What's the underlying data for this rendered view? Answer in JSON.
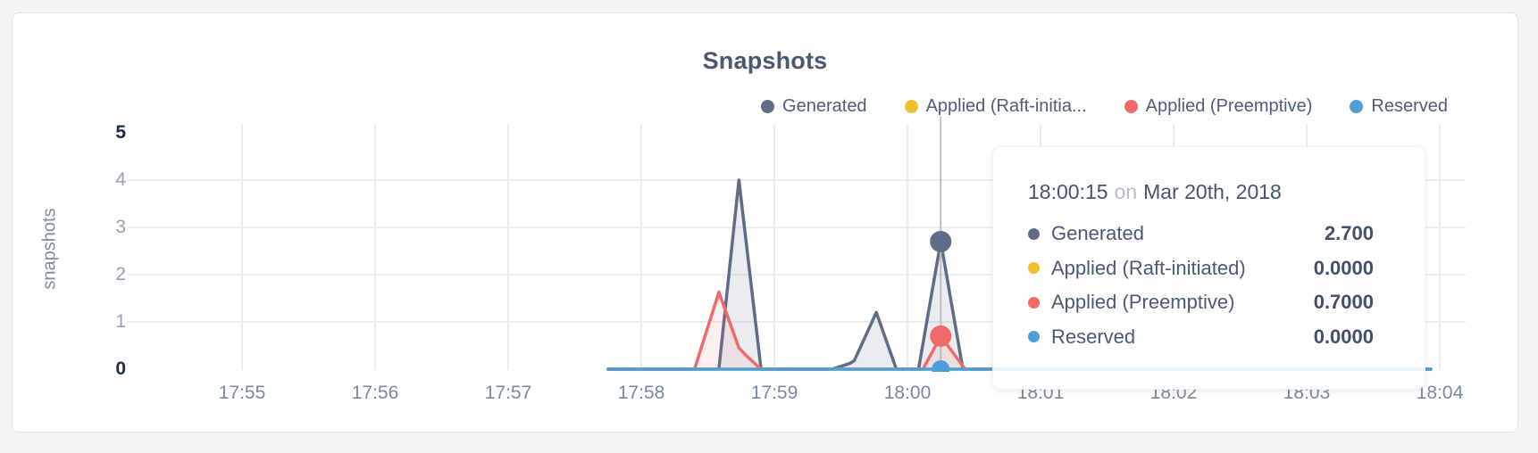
{
  "chart": {
    "title": "Snapshots",
    "y_axis_label": "snapshots"
  },
  "legend": [
    {
      "label": "Generated",
      "color": "#5F6C87"
    },
    {
      "label": "Applied (Raft-initia...",
      "color": "#F2BE2C"
    },
    {
      "label": "Applied (Preemptive)",
      "color": "#F16969"
    },
    {
      "label": "Reserved",
      "color": "#4C9FD8"
    }
  ],
  "tooltip": {
    "time": "18:00:15",
    "conjunction": "on",
    "date": "Mar 20th, 2018",
    "rows": [
      {
        "label": "Generated",
        "value": "2.700",
        "color": "#5F6C87"
      },
      {
        "label": "Applied (Raft-initiated)",
        "value": "0.0000",
        "color": "#F2BE2C"
      },
      {
        "label": "Applied (Preemptive)",
        "value": "0.7000",
        "color": "#F16969"
      },
      {
        "label": "Reserved",
        "value": "0.0000",
        "color": "#4C9FD8"
      }
    ]
  },
  "chart_data": {
    "type": "area",
    "title": "Snapshots",
    "xlabel": "",
    "ylabel": "snapshots",
    "ylim": [
      0,
      5
    ],
    "y_ticks": [
      5,
      4,
      3,
      2,
      1,
      0
    ],
    "x_ticks": [
      "17:55",
      "17:56",
      "17:57",
      "17:58",
      "17:59",
      "18:00",
      "18:01",
      "18:02",
      "18:03",
      "18:04"
    ],
    "grid": true,
    "legend_position": "top-right",
    "hover_time": "18:00:15",
    "hover_date": "Mar 20th, 2018",
    "series": [
      {
        "name": "Generated",
        "color": "#5F6C87",
        "fill": "rgba(95,108,135,0.13)",
        "hover_value": "2.700",
        "points": [
          [
            "17:57:45",
            0
          ],
          [
            "17:58:35",
            0
          ],
          [
            "17:58:44",
            4.0
          ],
          [
            "17:58:54",
            0
          ],
          [
            "17:59:26",
            0
          ],
          [
            "17:59:34",
            0.12
          ],
          [
            "17:59:36",
            0.18
          ],
          [
            "17:59:46",
            1.2
          ],
          [
            "17:59:55",
            0
          ],
          [
            "18:00:05",
            0
          ],
          [
            "18:00:15",
            2.7
          ],
          [
            "18:00:25",
            0
          ],
          [
            "18:03:56",
            0
          ]
        ]
      },
      {
        "name": "Applied (Raft-initiated)",
        "color": "#F2BE2C",
        "fill": null,
        "hover_value": "0.0000",
        "points": [
          [
            "17:57:45",
            0
          ],
          [
            "18:03:56",
            0
          ]
        ]
      },
      {
        "name": "Applied (Preemptive)",
        "color": "#F16969",
        "fill": "rgba(241,105,105,0.10)",
        "hover_value": "0.7000",
        "points": [
          [
            "17:57:45",
            0
          ],
          [
            "17:58:24",
            0
          ],
          [
            "17:58:35",
            1.63
          ],
          [
            "17:58:44",
            0.45
          ],
          [
            "17:58:47",
            0.3
          ],
          [
            "17:58:54",
            0
          ],
          [
            "18:00:07",
            0
          ],
          [
            "18:00:15",
            0.7
          ],
          [
            "18:00:26",
            0
          ],
          [
            "18:03:56",
            0
          ]
        ]
      },
      {
        "name": "Reserved",
        "color": "#4C9FD8",
        "fill": null,
        "hover_value": "0.0000",
        "points": [
          [
            "17:57:45",
            0
          ],
          [
            "18:03:56",
            0
          ]
        ]
      }
    ]
  }
}
